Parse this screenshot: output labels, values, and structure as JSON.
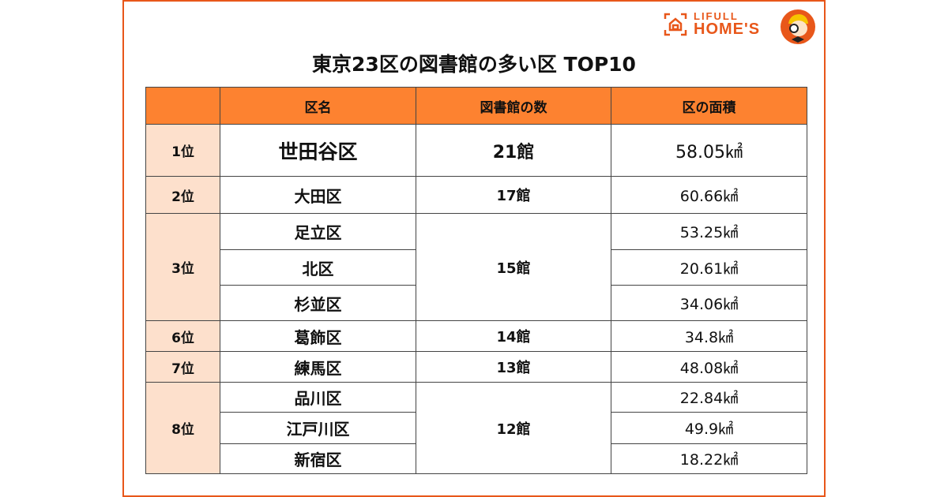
{
  "brand": {
    "line1": "LIFULL",
    "line2": "HOME'S",
    "color": "#e8571a"
  },
  "title": "東京23区の図書館の多い区 TOP10",
  "colors": {
    "header": "#fd8230",
    "rank_cell": "#fde0cc",
    "frame": "#e8571a"
  },
  "table": {
    "headers": [
      "",
      "区名",
      "図書館の数",
      "区の面積"
    ],
    "groups": [
      {
        "rank": "1位",
        "count": "21館",
        "rows": [
          {
            "name": "世田谷区",
            "area": "58.05㎢"
          }
        ]
      },
      {
        "rank": "2位",
        "count": "17館",
        "rows": [
          {
            "name": "大田区",
            "area": "60.66㎢"
          }
        ]
      },
      {
        "rank": "3位",
        "count": "15館",
        "rows": [
          {
            "name": "足立区",
            "area": "53.25㎢"
          },
          {
            "name": "北区",
            "area": "20.61㎢"
          },
          {
            "name": "杉並区",
            "area": "34.06㎢"
          }
        ]
      },
      {
        "rank": "6位",
        "count": "14館",
        "rows": [
          {
            "name": "葛飾区",
            "area": "34.8㎢"
          }
        ]
      },
      {
        "rank": "7位",
        "count": "13館",
        "rows": [
          {
            "name": "練馬区",
            "area": "48.08㎢"
          }
        ]
      },
      {
        "rank": "8位",
        "count": "12館",
        "rows": [
          {
            "name": "品川区",
            "area": "22.84㎢"
          },
          {
            "name": "江戸川区",
            "area": "49.9㎢"
          },
          {
            "name": "新宿区",
            "area": "18.22㎢"
          }
        ]
      }
    ]
  }
}
